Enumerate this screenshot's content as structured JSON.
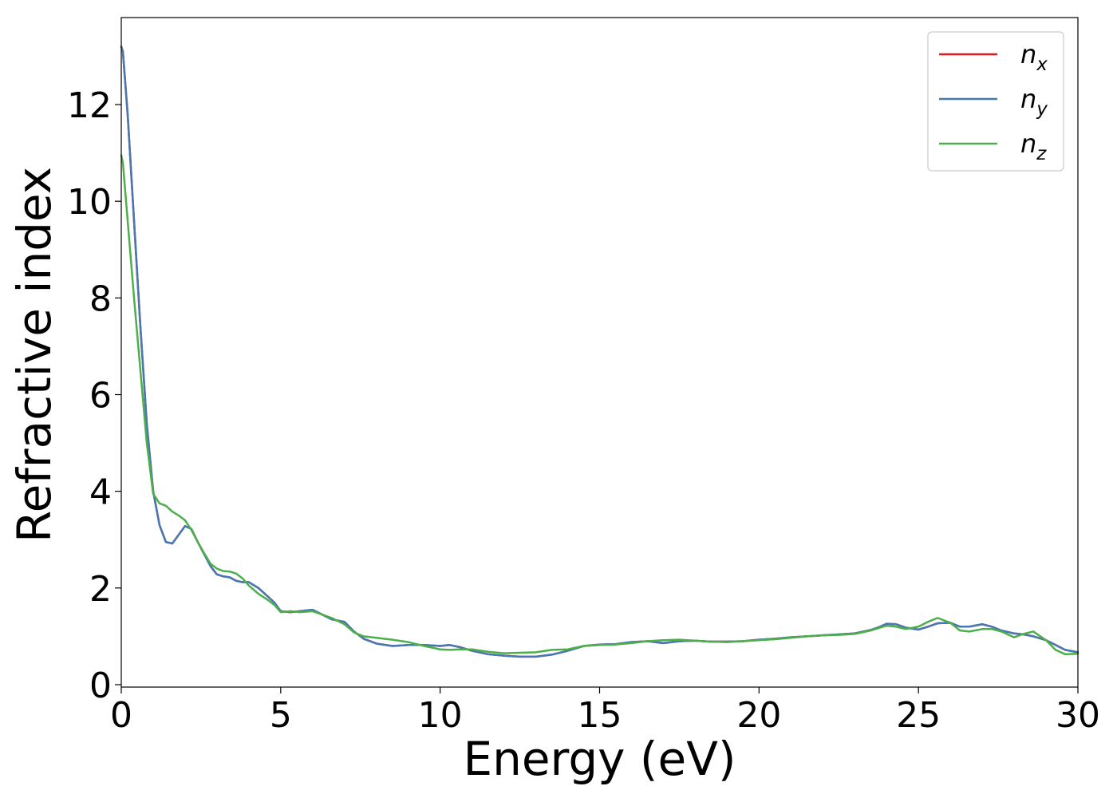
{
  "chart_data": {
    "type": "line",
    "title": "",
    "xlabel": "Energy (eV)",
    "ylabel": "Refractive index",
    "xlim": [
      0,
      30
    ],
    "ylim": [
      -0.05,
      13.8
    ],
    "xticks": [
      0,
      5,
      10,
      15,
      20,
      25,
      30
    ],
    "yticks": [
      0,
      2,
      4,
      6,
      8,
      10,
      12
    ],
    "grid": false,
    "legend_position": "top-right",
    "series": [
      {
        "name": "n_x",
        "legend_base": "n",
        "legend_sub": "x",
        "color": "#e41a1c",
        "x": [
          0,
          0.05,
          0.2,
          0.4,
          0.6,
          0.8,
          1.0,
          1.2,
          1.4,
          1.6,
          1.8,
          2.0,
          2.2,
          2.4,
          2.6,
          2.8,
          3.0,
          3.2,
          3.4,
          3.6,
          3.8,
          4.0,
          4.3,
          4.6,
          4.8,
          5.0,
          5.3,
          5.6,
          6.0,
          6.3,
          6.6,
          7.0,
          7.3,
          7.6,
          8.0,
          8.5,
          9.0,
          9.5,
          10.0,
          10.3,
          10.6,
          11.0,
          11.5,
          12.0,
          12.5,
          13.0,
          13.5,
          14.0,
          14.5,
          15.0,
          15.5,
          16.0,
          16.5,
          17.0,
          17.5,
          18.0,
          18.5,
          19.0,
          19.5,
          20.0,
          20.5,
          21.0,
          21.5,
          22.0,
          22.5,
          23.0,
          23.5,
          23.8,
          24.0,
          24.3,
          24.6,
          25.0,
          25.3,
          25.6,
          26.0,
          26.3,
          26.6,
          27.0,
          27.3,
          27.6,
          28.0,
          28.3,
          28.6,
          29.0,
          29.3,
          29.6,
          30.0
        ],
        "y": [
          13.2,
          13.1,
          11.8,
          9.6,
          7.4,
          5.4,
          4.0,
          3.3,
          2.95,
          2.92,
          3.1,
          3.28,
          3.22,
          2.95,
          2.7,
          2.45,
          2.28,
          2.24,
          2.22,
          2.15,
          2.12,
          2.12,
          2.0,
          1.82,
          1.7,
          1.52,
          1.5,
          1.52,
          1.55,
          1.45,
          1.35,
          1.3,
          1.1,
          0.95,
          0.85,
          0.8,
          0.82,
          0.82,
          0.8,
          0.82,
          0.78,
          0.7,
          0.63,
          0.6,
          0.58,
          0.58,
          0.62,
          0.7,
          0.8,
          0.83,
          0.84,
          0.88,
          0.9,
          0.86,
          0.9,
          0.91,
          0.89,
          0.89,
          0.9,
          0.93,
          0.95,
          0.98,
          1.0,
          1.02,
          1.04,
          1.06,
          1.13,
          1.2,
          1.26,
          1.25,
          1.18,
          1.14,
          1.2,
          1.27,
          1.28,
          1.2,
          1.2,
          1.25,
          1.2,
          1.12,
          1.06,
          1.04,
          1.0,
          0.92,
          0.82,
          0.72,
          0.67
        ]
      },
      {
        "name": "n_y",
        "legend_base": "n",
        "legend_sub": "y",
        "color": "#4479b4",
        "x": [
          0,
          0.05,
          0.2,
          0.4,
          0.6,
          0.8,
          1.0,
          1.2,
          1.4,
          1.6,
          1.8,
          2.0,
          2.2,
          2.4,
          2.6,
          2.8,
          3.0,
          3.2,
          3.4,
          3.6,
          3.8,
          4.0,
          4.3,
          4.6,
          4.8,
          5.0,
          5.3,
          5.6,
          6.0,
          6.3,
          6.6,
          7.0,
          7.3,
          7.6,
          8.0,
          8.5,
          9.0,
          9.5,
          10.0,
          10.3,
          10.6,
          11.0,
          11.5,
          12.0,
          12.5,
          13.0,
          13.5,
          14.0,
          14.5,
          15.0,
          15.5,
          16.0,
          16.5,
          17.0,
          17.5,
          18.0,
          18.5,
          19.0,
          19.5,
          20.0,
          20.5,
          21.0,
          21.5,
          22.0,
          22.5,
          23.0,
          23.5,
          23.8,
          24.0,
          24.3,
          24.6,
          25.0,
          25.3,
          25.6,
          26.0,
          26.3,
          26.6,
          27.0,
          27.3,
          27.6,
          28.0,
          28.3,
          28.6,
          29.0,
          29.3,
          29.6,
          30.0
        ],
        "y": [
          13.2,
          13.1,
          11.8,
          9.6,
          7.4,
          5.4,
          4.0,
          3.3,
          2.95,
          2.92,
          3.1,
          3.28,
          3.22,
          2.95,
          2.7,
          2.45,
          2.28,
          2.24,
          2.22,
          2.15,
          2.12,
          2.12,
          2.0,
          1.82,
          1.7,
          1.52,
          1.5,
          1.52,
          1.55,
          1.45,
          1.35,
          1.3,
          1.1,
          0.95,
          0.85,
          0.8,
          0.82,
          0.82,
          0.8,
          0.82,
          0.78,
          0.7,
          0.63,
          0.6,
          0.58,
          0.58,
          0.62,
          0.7,
          0.8,
          0.83,
          0.84,
          0.88,
          0.9,
          0.86,
          0.9,
          0.91,
          0.89,
          0.89,
          0.9,
          0.93,
          0.95,
          0.98,
          1.0,
          1.02,
          1.04,
          1.06,
          1.13,
          1.2,
          1.26,
          1.25,
          1.18,
          1.14,
          1.2,
          1.27,
          1.28,
          1.2,
          1.2,
          1.25,
          1.2,
          1.12,
          1.06,
          1.04,
          1.0,
          0.92,
          0.82,
          0.72,
          0.67
        ]
      },
      {
        "name": "n_z",
        "legend_base": "n",
        "legend_sub": "z",
        "color": "#4daf4a",
        "x": [
          0,
          0.05,
          0.2,
          0.4,
          0.6,
          0.8,
          1.0,
          1.2,
          1.4,
          1.6,
          1.8,
          2.0,
          2.2,
          2.4,
          2.6,
          2.8,
          3.0,
          3.2,
          3.4,
          3.6,
          3.8,
          4.0,
          4.3,
          4.6,
          4.8,
          5.0,
          5.3,
          5.6,
          6.0,
          6.3,
          6.6,
          7.0,
          7.3,
          7.6,
          8.0,
          8.5,
          9.0,
          9.5,
          10.0,
          10.3,
          10.6,
          11.0,
          11.5,
          12.0,
          12.5,
          13.0,
          13.5,
          14.0,
          14.5,
          15.0,
          15.5,
          16.0,
          16.5,
          17.0,
          17.5,
          18.0,
          18.5,
          19.0,
          19.5,
          20.0,
          20.5,
          21.0,
          21.5,
          22.0,
          22.5,
          23.0,
          23.5,
          23.8,
          24.0,
          24.3,
          24.6,
          25.0,
          25.3,
          25.6,
          26.0,
          26.3,
          26.6,
          27.0,
          27.3,
          27.6,
          28.0,
          28.3,
          28.6,
          29.0,
          29.3,
          29.6,
          30.0
        ],
        "y": [
          10.95,
          10.8,
          9.6,
          8.0,
          6.5,
          5.0,
          3.95,
          3.75,
          3.7,
          3.58,
          3.5,
          3.4,
          3.2,
          2.95,
          2.72,
          2.5,
          2.4,
          2.35,
          2.34,
          2.3,
          2.2,
          2.05,
          1.88,
          1.75,
          1.65,
          1.5,
          1.52,
          1.5,
          1.52,
          1.45,
          1.38,
          1.25,
          1.08,
          1.0,
          0.97,
          0.93,
          0.88,
          0.8,
          0.73,
          0.72,
          0.73,
          0.73,
          0.68,
          0.65,
          0.66,
          0.67,
          0.72,
          0.73,
          0.8,
          0.82,
          0.83,
          0.86,
          0.9,
          0.92,
          0.93,
          0.91,
          0.89,
          0.88,
          0.9,
          0.92,
          0.94,
          0.97,
          1.0,
          1.02,
          1.03,
          1.05,
          1.12,
          1.18,
          1.22,
          1.2,
          1.15,
          1.2,
          1.3,
          1.38,
          1.28,
          1.12,
          1.1,
          1.15,
          1.15,
          1.1,
          0.98,
          1.05,
          1.1,
          0.92,
          0.72,
          0.63,
          0.64
        ]
      }
    ]
  }
}
